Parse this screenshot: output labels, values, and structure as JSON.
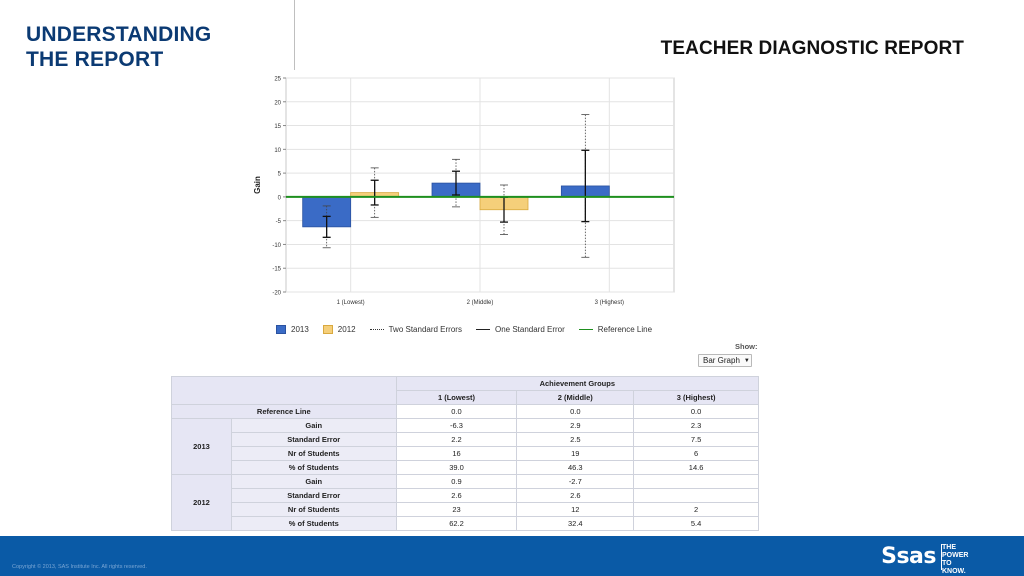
{
  "slide": {
    "title_line1": "UNDERSTANDING",
    "title_line2": "THE REPORT",
    "report_title": "TEACHER DIAGNOSTIC REPORT"
  },
  "chart_data": {
    "type": "bar",
    "ylabel": "Gain",
    "ylim": [
      -20,
      25
    ],
    "yticks": [
      25,
      20,
      15,
      10,
      5,
      0,
      -5,
      -10,
      -15,
      -20
    ],
    "categories": [
      "1 (Lowest)",
      "2 (Middle)",
      "3 (Highest)"
    ],
    "grid": true,
    "reference_line": 0,
    "series": [
      {
        "name": "2013",
        "color": "#3a6bc6",
        "values": [
          -6.3,
          2.9,
          2.3
        ],
        "se": [
          2.2,
          2.5,
          7.5
        ]
      },
      {
        "name": "2012",
        "color": "#f5cf7a",
        "values": [
          0.9,
          -2.7,
          null
        ],
        "se": [
          2.6,
          2.6,
          null
        ]
      }
    ],
    "legend": {
      "placement": "bottom",
      "items": [
        "2013",
        "2012",
        "Two Standard Errors",
        "One Standard Error",
        "Reference Line"
      ]
    },
    "reference_color": "#1e8f1e"
  },
  "controls": {
    "show_label": "Show:",
    "show_value": "Bar Graph"
  },
  "table": {
    "group_header": "Achievement Groups",
    "columns": [
      "1 (Lowest)",
      "2 (Middle)",
      "3 (Highest)"
    ],
    "reference_label": "Reference Line",
    "reference_values": [
      "0.0",
      "0.0",
      "0.0"
    ],
    "groups": [
      {
        "year": "2013",
        "rows": [
          {
            "label": "Gain",
            "values": [
              "-6.3",
              "2.9",
              "2.3"
            ]
          },
          {
            "label": "Standard Error",
            "values": [
              "2.2",
              "2.5",
              "7.5"
            ]
          },
          {
            "label": "Nr of Students",
            "values": [
              "16",
              "19",
              "6"
            ]
          },
          {
            "label": "% of Students",
            "values": [
              "39.0",
              "46.3",
              "14.6"
            ]
          }
        ]
      },
      {
        "year": "2012",
        "rows": [
          {
            "label": "Gain",
            "values": [
              "0.9",
              "-2.7",
              ""
            ]
          },
          {
            "label": "Standard Error",
            "values": [
              "2.6",
              "2.6",
              ""
            ]
          },
          {
            "label": "Nr of Students",
            "values": [
              "23",
              "12",
              "2"
            ]
          },
          {
            "label": "% of Students",
            "values": [
              "62.2",
              "32.4",
              "5.4"
            ]
          }
        ]
      }
    ]
  },
  "footer": {
    "copyright": "Copyright © 2013, SAS Institute Inc. All rights reserved.",
    "logo": "Ssas",
    "tagline_1": "THE",
    "tagline_2": "POWER",
    "tagline_3": "TO KNOW."
  }
}
